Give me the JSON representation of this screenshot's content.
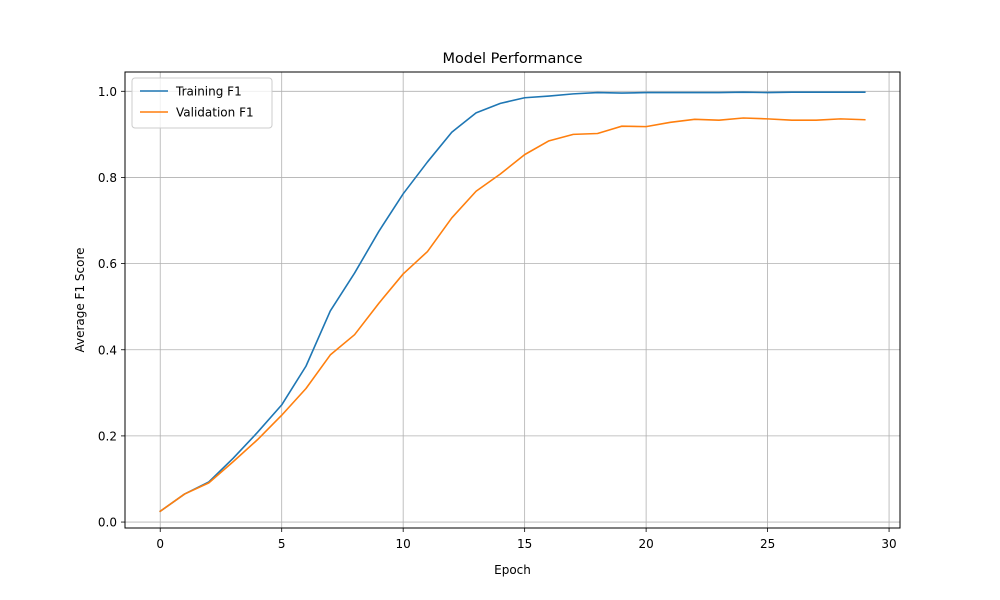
{
  "chart_data": {
    "type": "line",
    "title": "Model Performance",
    "xlabel": "Epoch",
    "ylabel": "Average F1 Score",
    "xlim": [
      -1.45,
      30.45
    ],
    "ylim": [
      -0.0138,
      1.0448
    ],
    "xticks": [
      0,
      5,
      10,
      15,
      20,
      25,
      30
    ],
    "yticks": [
      0.0,
      0.2,
      0.4,
      0.6,
      0.8,
      1.0
    ],
    "xtick_labels": [
      "0",
      "5",
      "10",
      "15",
      "20",
      "25",
      "30"
    ],
    "ytick_labels": [
      "0.0",
      "0.2",
      "0.4",
      "0.6",
      "0.8",
      "1.0"
    ],
    "grid": true,
    "legend_position": "upper-left",
    "x": [
      0,
      1,
      2,
      3,
      4,
      5,
      6,
      7,
      8,
      9,
      10,
      11,
      12,
      13,
      14,
      15,
      16,
      17,
      18,
      19,
      20,
      21,
      22,
      23,
      24,
      25,
      26,
      27,
      28,
      29
    ],
    "series": [
      {
        "name": "Training F1",
        "color": "#1f77b4",
        "values": [
          0.025,
          0.065,
          0.093,
          0.148,
          0.208,
          0.272,
          0.362,
          0.49,
          0.578,
          0.675,
          0.762,
          0.836,
          0.905,
          0.95,
          0.972,
          0.985,
          0.989,
          0.994,
          0.997,
          0.996,
          0.997,
          0.997,
          0.997,
          0.997,
          0.998,
          0.997,
          0.998,
          0.998,
          0.998,
          0.998
        ]
      },
      {
        "name": "Validation F1",
        "color": "#ff7f0e",
        "values": [
          0.025,
          0.065,
          0.091,
          0.14,
          0.191,
          0.248,
          0.31,
          0.388,
          0.435,
          0.508,
          0.576,
          0.628,
          0.706,
          0.768,
          0.808,
          0.853,
          0.885,
          0.9,
          0.902,
          0.919,
          0.918,
          0.928,
          0.935,
          0.933,
          0.938,
          0.936,
          0.933,
          0.933,
          0.936,
          0.934
        ]
      }
    ]
  }
}
